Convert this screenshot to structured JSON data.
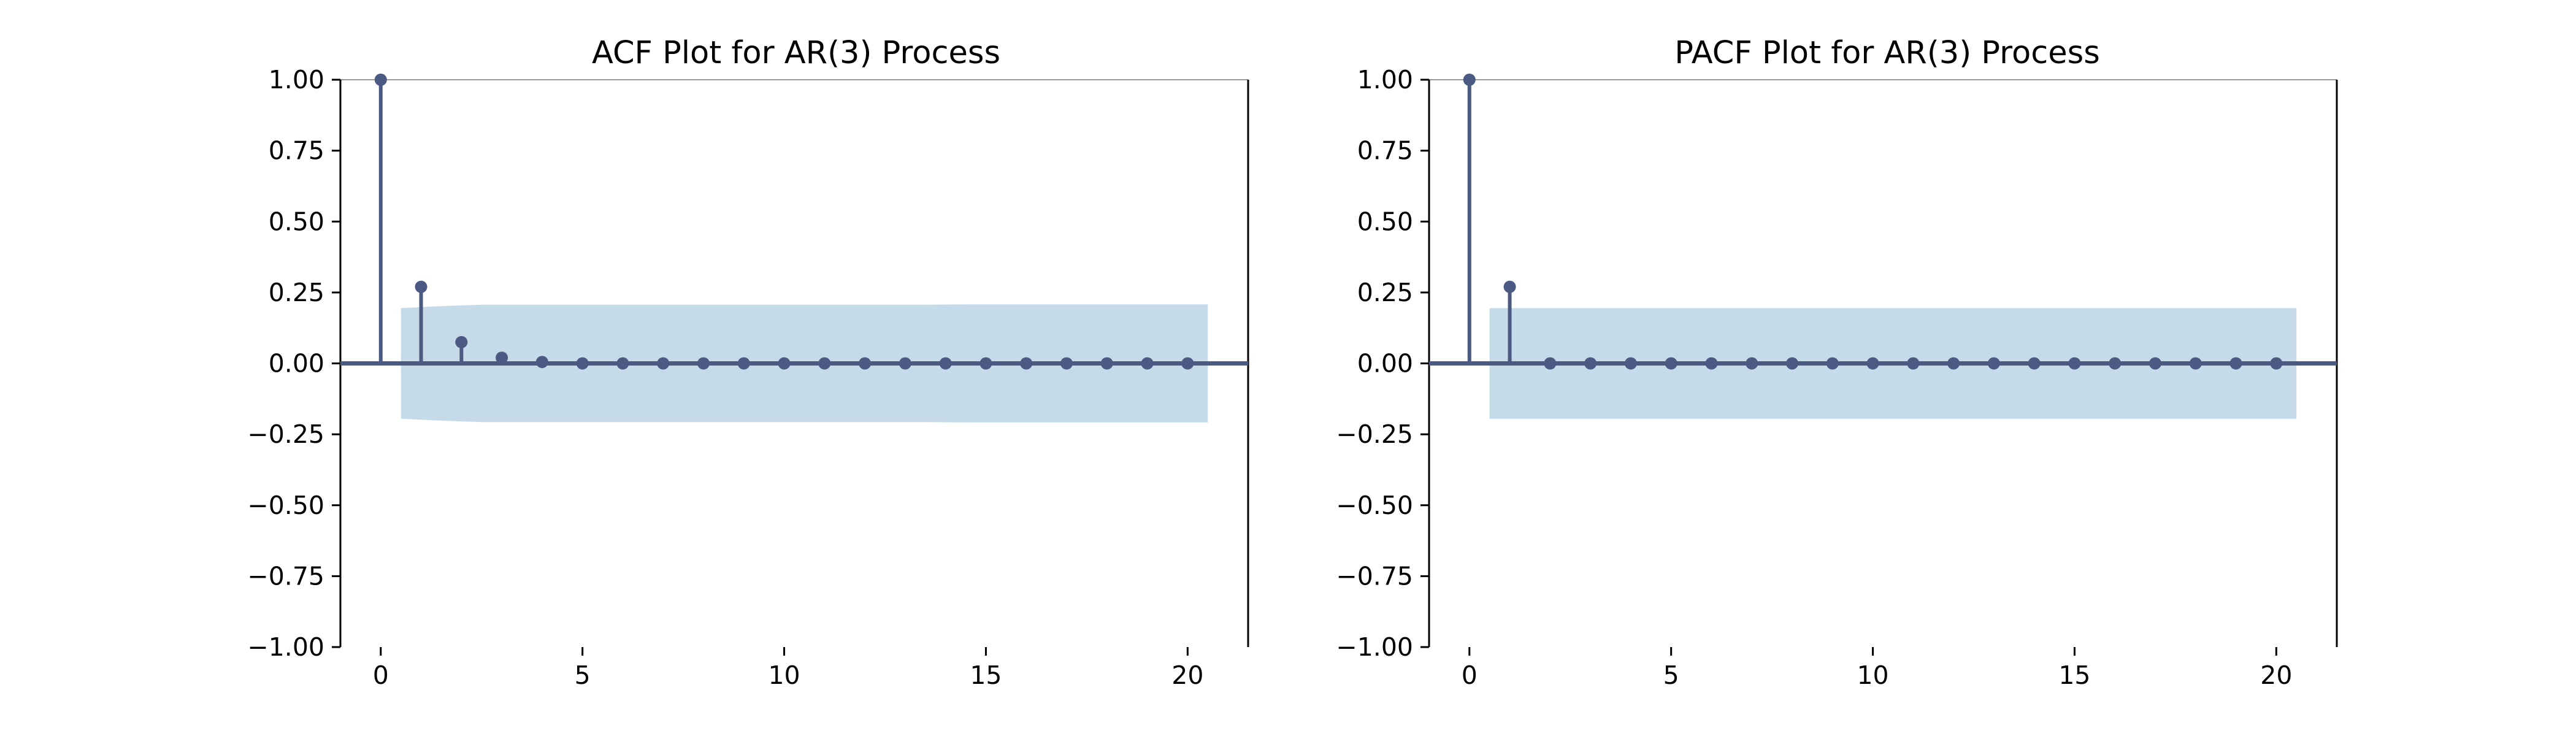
{
  "colors": {
    "stem": "#4a5a82",
    "band": "#c6dbea",
    "axis": "#000000",
    "top_spine": "#9a9a9a"
  },
  "chart_data": [
    {
      "type": "stem",
      "title": "ACF Plot for AR(3) Process",
      "xlabel": "",
      "ylabel": "",
      "xlim": [
        -1,
        21.5
      ],
      "ylim": [
        -1.0,
        1.0
      ],
      "xticks": [
        0,
        5,
        10,
        15,
        20
      ],
      "xtick_labels": [
        "0",
        "5",
        "10",
        "15",
        "20"
      ],
      "yticks": [
        1.0,
        0.75,
        0.5,
        0.25,
        0.0,
        -0.25,
        -0.5,
        -0.75,
        -1.0
      ],
      "ytick_labels": [
        "1.00",
        "0.75",
        "0.50",
        "0.25",
        "0.00",
        "−0.25",
        "−0.50",
        "−0.75",
        "−1.00"
      ],
      "grid": false,
      "lags": [
        0,
        1,
        2,
        3,
        4,
        5,
        6,
        7,
        8,
        9,
        10,
        11,
        12,
        13,
        14,
        15,
        16,
        17,
        18,
        19,
        20
      ],
      "values": [
        1.0,
        0.27,
        0.075,
        0.02,
        0.005,
        0.0,
        0.0,
        0.0,
        0.0,
        0.0,
        0.0,
        0.0,
        0.0,
        0.0,
        0.0,
        0.0,
        0.0,
        0.0,
        0.0,
        0.0,
        0.0
      ],
      "confidence_band": {
        "x": [
          0.5,
          1.5,
          2.5,
          3.5,
          4.5,
          5.5,
          6.5,
          7.5,
          8.5,
          9.5,
          10.5,
          11.5,
          12.5,
          13.5,
          14.5,
          15.5,
          16.5,
          17.5,
          18.5,
          19.5,
          20.5
        ],
        "upper": [
          0.195,
          0.202,
          0.207,
          0.207,
          0.207,
          0.207,
          0.207,
          0.207,
          0.207,
          0.207,
          0.207,
          0.207,
          0.207,
          0.207,
          0.208,
          0.208,
          0.208,
          0.208,
          0.208,
          0.208,
          0.208
        ]
      }
    },
    {
      "type": "stem",
      "title": "PACF Plot for AR(3) Process",
      "xlabel": "",
      "ylabel": "",
      "xlim": [
        -1,
        21.5
      ],
      "ylim": [
        -1.0,
        1.0
      ],
      "xticks": [
        0,
        5,
        10,
        15,
        20
      ],
      "xtick_labels": [
        "0",
        "5",
        "10",
        "15",
        "20"
      ],
      "yticks": [
        1.0,
        0.75,
        0.5,
        0.25,
        0.0,
        -0.25,
        -0.5,
        -0.75,
        -1.0
      ],
      "ytick_labels": [
        "1.00",
        "0.75",
        "0.50",
        "0.25",
        "0.00",
        "−0.25",
        "−0.50",
        "−0.75",
        "−1.00"
      ],
      "grid": false,
      "lags": [
        0,
        1,
        2,
        3,
        4,
        5,
        6,
        7,
        8,
        9,
        10,
        11,
        12,
        13,
        14,
        15,
        16,
        17,
        18,
        19,
        20
      ],
      "values": [
        1.0,
        0.27,
        0.0,
        0.0,
        0.0,
        0.0,
        0.0,
        0.0,
        0.0,
        0.0,
        0.0,
        0.0,
        0.0,
        0.0,
        0.0,
        0.0,
        0.0,
        0.0,
        0.0,
        0.0,
        0.0
      ],
      "confidence_band": {
        "x": [
          0.5,
          20.5
        ],
        "upper": [
          0.195,
          0.195
        ]
      }
    }
  ]
}
